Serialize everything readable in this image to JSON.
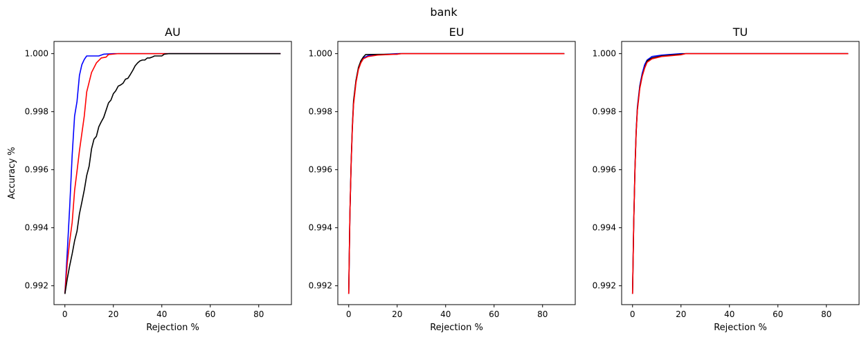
{
  "figure": {
    "title": "bank"
  },
  "chart_data": [
    {
      "type": "line",
      "title": "AU",
      "xlabel": "Rejection %",
      "ylabel": "Accuracy %",
      "xlim": [
        -4.5,
        93.5
      ],
      "ylim": [
        0.99135,
        1.00042
      ],
      "xticks": [
        0,
        20,
        40,
        60,
        80
      ],
      "yticks": [
        0.992,
        0.994,
        0.996,
        0.998,
        1.0
      ],
      "ytick_labels": [
        "0.992",
        "0.994",
        "0.996",
        "0.998",
        "1.000"
      ],
      "series": [
        {
          "color": "#0000ff",
          "points": [
            [
              0,
              0.99172
            ],
            [
              1,
              0.9932
            ],
            [
              2,
              0.99475
            ],
            [
              3,
              0.9965
            ],
            [
              4,
              0.99785
            ],
            [
              5,
              0.99835
            ],
            [
              6,
              0.99925
            ],
            [
              7,
              0.99962
            ],
            [
              8,
              0.9998
            ],
            [
              9,
              0.99992
            ],
            [
              10,
              0.99992
            ],
            [
              14,
              0.99992
            ],
            [
              16,
              0.99998
            ],
            [
              20,
              1.0
            ],
            [
              89,
              1.0
            ]
          ]
        },
        {
          "color": "#ff0000",
          "points": [
            [
              0,
              0.99172
            ],
            [
              1,
              0.9928
            ],
            [
              2,
              0.99355
            ],
            [
              3,
              0.99418
            ],
            [
              4,
              0.99528
            ],
            [
              5,
              0.99595
            ],
            [
              6,
              0.99665
            ],
            [
              7,
              0.99725
            ],
            [
              8,
              0.99785
            ],
            [
              9,
              0.99868
            ],
            [
              11,
              0.99935
            ],
            [
              13,
              0.99968
            ],
            [
              15,
              0.99985
            ],
            [
              17,
              0.99988
            ],
            [
              18,
              0.99997
            ],
            [
              22,
              1.0
            ],
            [
              89,
              1.0
            ]
          ]
        },
        {
          "color": "#000000",
          "points": [
            [
              0,
              0.99172
            ],
            [
              1,
              0.99225
            ],
            [
              2,
              0.9927
            ],
            [
              3,
              0.9931
            ],
            [
              4,
              0.99355
            ],
            [
              5,
              0.99388
            ],
            [
              6,
              0.99448
            ],
            [
              7,
              0.99488
            ],
            [
              8,
              0.9953
            ],
            [
              9,
              0.9958
            ],
            [
              10,
              0.99612
            ],
            [
              11,
              0.99672
            ],
            [
              12,
              0.99705
            ],
            [
              13,
              0.99715
            ],
            [
              14,
              0.99748
            ],
            [
              15,
              0.99765
            ],
            [
              16,
              0.9978
            ],
            [
              17,
              0.99805
            ],
            [
              18,
              0.9983
            ],
            [
              19,
              0.9984
            ],
            [
              20,
              0.99862
            ],
            [
              21,
              0.99872
            ],
            [
              22,
              0.99888
            ],
            [
              23,
              0.99892
            ],
            [
              24,
              0.99898
            ],
            [
              25,
              0.99912
            ],
            [
              26,
              0.99915
            ],
            [
              27,
              0.99928
            ],
            [
              28,
              0.99942
            ],
            [
              29,
              0.99958
            ],
            [
              30,
              0.99968
            ],
            [
              31,
              0.99975
            ],
            [
              32,
              0.99978
            ],
            [
              33,
              0.99978
            ],
            [
              34,
              0.99985
            ],
            [
              35,
              0.99985
            ],
            [
              36,
              0.99988
            ],
            [
              37,
              0.99992
            ],
            [
              38,
              0.99992
            ],
            [
              40,
              0.99992
            ],
            [
              41,
              0.99998
            ],
            [
              43,
              1.0
            ],
            [
              89,
              1.0
            ]
          ]
        }
      ]
    },
    {
      "type": "line",
      "title": "EU",
      "xlabel": "Rejection %",
      "ylabel": "",
      "xlim": [
        -4.5,
        93.5
      ],
      "ylim": [
        0.99135,
        1.00042
      ],
      "xticks": [
        0,
        20,
        40,
        60,
        80
      ],
      "yticks": [
        0.992,
        0.994,
        0.996,
        0.998,
        1.0
      ],
      "ytick_labels": [
        "0.992",
        "0.994",
        "0.996",
        "0.998",
        "1.000"
      ],
      "series": [
        {
          "color": "#0000ff",
          "points": [
            [
              0,
              0.99172
            ],
            [
              0.5,
              0.9945
            ],
            [
              1,
              0.9962
            ],
            [
              1.5,
              0.99745
            ],
            [
              2,
              0.9983
            ],
            [
              3,
              0.99905
            ],
            [
              4,
              0.99948
            ],
            [
              5,
              0.99972
            ],
            [
              6,
              0.99985
            ],
            [
              8,
              0.99993
            ],
            [
              12,
              0.99996
            ],
            [
              20,
              1.0
            ],
            [
              89,
              1.0
            ]
          ]
        },
        {
          "color": "#000000",
          "points": [
            [
              0,
              0.99172
            ],
            [
              0.5,
              0.9945
            ],
            [
              1,
              0.99625
            ],
            [
              1.5,
              0.9975
            ],
            [
              2,
              0.99838
            ],
            [
              3,
              0.99908
            ],
            [
              4,
              0.99952
            ],
            [
              5,
              0.99975
            ],
            [
              6,
              0.99988
            ],
            [
              7,
              0.99997
            ],
            [
              20,
              0.99998
            ],
            [
              21,
              1.0
            ],
            [
              89,
              1.0
            ]
          ]
        },
        {
          "color": "#ff0000",
          "points": [
            [
              0,
              0.99172
            ],
            [
              0.5,
              0.9945
            ],
            [
              1,
              0.9962
            ],
            [
              1.5,
              0.99742
            ],
            [
              2,
              0.99825
            ],
            [
              3,
              0.999
            ],
            [
              4,
              0.99945
            ],
            [
              5,
              0.99968
            ],
            [
              6,
              0.99982
            ],
            [
              8,
              0.9999
            ],
            [
              12,
              0.99995
            ],
            [
              20,
              0.99998
            ],
            [
              22,
              1.0
            ],
            [
              89,
              1.0
            ]
          ]
        }
      ]
    },
    {
      "type": "line",
      "title": "TU",
      "xlabel": "Rejection %",
      "ylabel": "",
      "xlim": [
        -4.5,
        93.5
      ],
      "ylim": [
        0.99135,
        1.00042
      ],
      "xticks": [
        0,
        20,
        40,
        60,
        80
      ],
      "yticks": [
        0.992,
        0.994,
        0.996,
        0.998,
        1.0
      ],
      "ytick_labels": [
        "0.992",
        "0.994",
        "0.996",
        "0.998",
        "1.000"
      ],
      "series": [
        {
          "color": "#0000ff",
          "points": [
            [
              0,
              0.99172
            ],
            [
              0.5,
              0.9942
            ],
            [
              1,
              0.99605
            ],
            [
              1.5,
              0.99735
            ],
            [
              2,
              0.99815
            ],
            [
              3,
              0.9989
            ],
            [
              4,
              0.99932
            ],
            [
              5,
              0.99962
            ],
            [
              6,
              0.99978
            ],
            [
              8,
              0.9999
            ],
            [
              12,
              0.99995
            ],
            [
              20,
              1.0
            ],
            [
              89,
              1.0
            ]
          ]
        },
        {
          "color": "#000000",
          "points": [
            [
              0,
              0.99172
            ],
            [
              0.5,
              0.9942
            ],
            [
              1,
              0.996
            ],
            [
              1.5,
              0.9973
            ],
            [
              2,
              0.9981
            ],
            [
              3,
              0.99885
            ],
            [
              4,
              0.99925
            ],
            [
              5,
              0.99952
            ],
            [
              6,
              0.99975
            ],
            [
              8,
              0.99985
            ],
            [
              12,
              0.99992
            ],
            [
              20,
              0.99998
            ],
            [
              22,
              1.0
            ],
            [
              89,
              1.0
            ]
          ]
        },
        {
          "color": "#ff0000",
          "points": [
            [
              0,
              0.99172
            ],
            [
              0.5,
              0.9942
            ],
            [
              1,
              0.996
            ],
            [
              1.5,
              0.99728
            ],
            [
              2,
              0.99805
            ],
            [
              3,
              0.9988
            ],
            [
              4,
              0.99922
            ],
            [
              5,
              0.9995
            ],
            [
              6,
              0.9997
            ],
            [
              8,
              0.99982
            ],
            [
              12,
              0.9999
            ],
            [
              20,
              0.99996
            ],
            [
              22,
              1.0
            ],
            [
              89,
              1.0
            ]
          ]
        }
      ]
    }
  ]
}
